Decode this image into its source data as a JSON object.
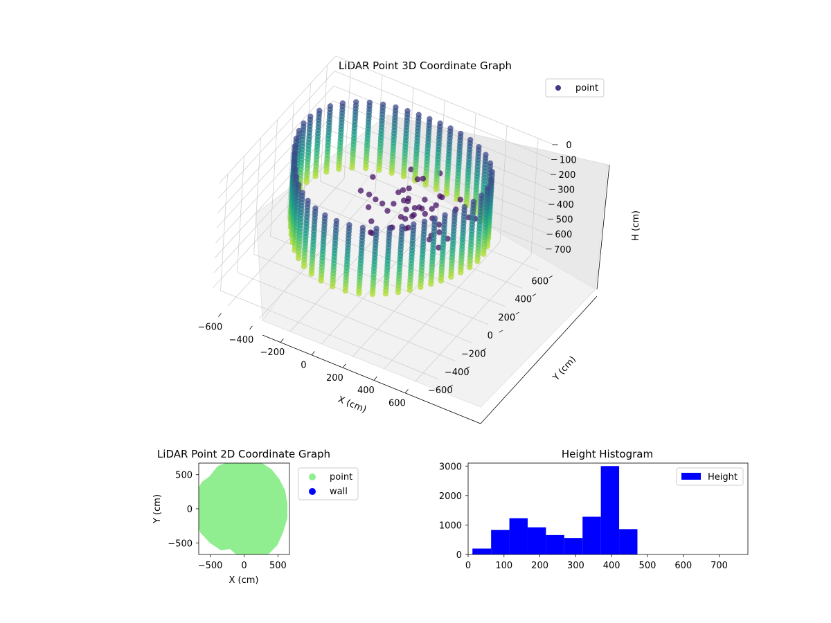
{
  "chart_data": [
    {
      "type": "scatter",
      "title": "LiDAR Point 3D Coordinate Graph",
      "projection": "3d",
      "xlabel": "X (cm)",
      "ylabel": "Y (cm)",
      "zlabel": "H (cm)",
      "xlim": [
        -700,
        700
      ],
      "ylim": [
        -700,
        700
      ],
      "zlim": [
        0,
        780
      ],
      "z_inverted": true,
      "xticks": [
        "−600",
        "−400",
        "−200",
        "0",
        "200",
        "400",
        "600"
      ],
      "yticks": [
        "−600",
        "−400",
        "−200",
        "0",
        "200",
        "400",
        "600"
      ],
      "zticks": [
        "0",
        "100",
        "200",
        "300",
        "400",
        "500",
        "600",
        "700"
      ],
      "colormap": "viridis",
      "legend": {
        "placement": "top-right",
        "entries": [
          {
            "label": "point",
            "color": "#3f3a83"
          }
        ]
      },
      "grid": true,
      "shape": "ring of vertical point columns, radius about 600 cm, heights 0 to about 470 cm"
    },
    {
      "type": "scatter",
      "title": "LiDAR Point 2D Coordinate Graph",
      "xlabel": "X (cm)",
      "ylabel": "Y (cm)",
      "xlim": [
        -670,
        670
      ],
      "ylim": [
        -670,
        670
      ],
      "xticks": [
        "−500",
        "0",
        "500"
      ],
      "yticks": [
        "500",
        "0",
        "−500"
      ],
      "shape": "filled disc of radius about 600 cm",
      "series": [
        {
          "name": "point",
          "color": "#90ee90"
        },
        {
          "name": "wall",
          "color": "#0000ff"
        }
      ],
      "legend": {
        "placement": "outside-right"
      }
    },
    {
      "type": "bar",
      "title": "Height Histogram",
      "xlim": [
        0,
        780
      ],
      "ylim": [
        0,
        3100
      ],
      "xticks": [
        "0",
        "100",
        "200",
        "300",
        "400",
        "500",
        "600",
        "700"
      ],
      "yticks": [
        "0",
        "1000",
        "2000",
        "3000"
      ],
      "bin_edges": [
        12,
        64,
        115,
        166,
        217,
        268,
        319,
        370,
        421,
        472,
        523,
        574,
        625,
        676,
        727,
        778
      ],
      "values": [
        200,
        830,
        1230,
        920,
        660,
        560,
        1280,
        3000,
        860,
        0,
        0,
        0,
        0,
        0,
        0
      ],
      "series": [
        {
          "name": "Height",
          "color": "#0000ff"
        }
      ],
      "legend": {
        "placement": "top-right"
      }
    }
  ]
}
